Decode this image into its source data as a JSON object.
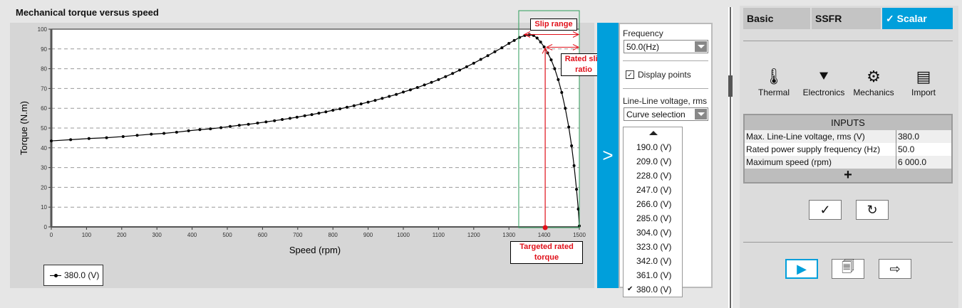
{
  "chart_title": "Mechanical torque versus speed",
  "chart_data": {
    "type": "line",
    "title": "Mechanical torque versus speed",
    "xlabel": "Speed (rpm)",
    "ylabel": "Torque (N.m)",
    "xlim": [
      0,
      1500
    ],
    "ylim": [
      0,
      100
    ],
    "xticks": [
      0,
      100,
      200,
      300,
      400,
      500,
      600,
      700,
      800,
      900,
      1000,
      1100,
      1200,
      1300,
      1400,
      1500
    ],
    "yticks": [
      0,
      10,
      20,
      30,
      40,
      50,
      60,
      70,
      80,
      90,
      100
    ],
    "grid": "horizontal dashed",
    "legend_position": "bottom-left",
    "series": [
      {
        "name": "380.0 (V)",
        "color": "#000000",
        "markers": true,
        "points": [
          [
            0,
            43.5
          ],
          [
            55,
            44.1
          ],
          [
            107,
            44.7
          ],
          [
            157,
            45.1
          ],
          [
            204,
            45.7
          ],
          [
            244,
            46.3
          ],
          [
            284,
            46.9
          ],
          [
            320,
            47.3
          ],
          [
            356,
            47.9
          ],
          [
            390,
            48.6
          ],
          [
            422,
            49.2
          ],
          [
            452,
            49.6
          ],
          [
            482,
            50.2
          ],
          [
            508,
            50.8
          ],
          [
            534,
            51.4
          ],
          [
            560,
            51.9
          ],
          [
            586,
            52.5
          ],
          [
            610,
            53.1
          ],
          [
            634,
            53.7
          ],
          [
            656,
            54.3
          ],
          [
            678,
            54.9
          ],
          [
            698,
            55.5
          ],
          [
            720,
            56.2
          ],
          [
            740,
            56.8
          ],
          [
            760,
            57.5
          ],
          [
            780,
            58.2
          ],
          [
            800,
            59.0
          ],
          [
            820,
            59.7
          ],
          [
            840,
            60.5
          ],
          [
            860,
            61.3
          ],
          [
            880,
            62.2
          ],
          [
            900,
            63.1
          ],
          [
            920,
            64.0
          ],
          [
            940,
            65.0
          ],
          [
            960,
            66.0
          ],
          [
            980,
            67.0
          ],
          [
            1000,
            68.2
          ],
          [
            1020,
            69.3
          ],
          [
            1040,
            70.5
          ],
          [
            1060,
            71.8
          ],
          [
            1080,
            73.1
          ],
          [
            1100,
            74.5
          ],
          [
            1120,
            76.0
          ],
          [
            1140,
            77.6
          ],
          [
            1160,
            79.3
          ],
          [
            1180,
            81.0
          ],
          [
            1200,
            82.8
          ],
          [
            1220,
            84.7
          ],
          [
            1240,
            86.6
          ],
          [
            1260,
            88.6
          ],
          [
            1280,
            90.6
          ],
          [
            1300,
            92.8
          ],
          [
            1315,
            94.3
          ],
          [
            1330,
            95.8
          ],
          [
            1345,
            96.8
          ],
          [
            1358,
            97.2
          ],
          [
            1370,
            96.8
          ],
          [
            1380,
            95.5
          ],
          [
            1390,
            93.5
          ],
          [
            1400,
            91.0
          ],
          [
            1410,
            88.0
          ],
          [
            1420,
            84.5
          ],
          [
            1430,
            80.0
          ],
          [
            1440,
            74.5
          ],
          [
            1450,
            68.0
          ],
          [
            1460,
            60.0
          ],
          [
            1470,
            50.5
          ],
          [
            1478,
            41.0
          ],
          [
            1485,
            31.0
          ],
          [
            1492,
            19.0
          ],
          [
            1497,
            9.0
          ],
          [
            1500,
            0.5
          ]
        ]
      }
    ],
    "annotations": {
      "slip_range": "Slip range",
      "rated_slip_ratio": "Rated slip ratio",
      "targeted_rated_torque": "Targeted rated torque",
      "slip_range_start_rpm": 1340,
      "rated_point": [
        1403,
        90.5
      ],
      "annotation_color": "#e0101a",
      "slip_box_color": "#2e9e5b"
    }
  },
  "side_toggle": ">",
  "options": {
    "frequency_label": "Frequency",
    "frequency_value": "50.0(Hz)",
    "display_points_label": "Display points",
    "display_points_checked": true,
    "voltage_label": "Line-Line voltage, rms",
    "curve_selection": "Curve selection",
    "voltage_options": [
      "190.0 (V)",
      "209.0 (V)",
      "228.0 (V)",
      "247.0 (V)",
      "266.0 (V)",
      "285.0 (V)",
      "304.0 (V)",
      "323.0 (V)",
      "342.0 (V)",
      "361.0 (V)",
      "380.0 (V)"
    ],
    "selected_voltage": "380.0 (V)"
  },
  "right_panel": {
    "tabs": [
      "Basic",
      "SSFR",
      "✓ Scalar"
    ],
    "active_tab": "Scalar",
    "accent": "#009fdb",
    "tools": [
      {
        "label": "Thermal",
        "icon": "thermometer-icon",
        "glyph": "🌡"
      },
      {
        "label": "Electronics",
        "icon": "diode-icon",
        "glyph": "⯆"
      },
      {
        "label": "Mechanics",
        "icon": "gears-icon",
        "glyph": "⚙"
      },
      {
        "label": "Import",
        "icon": "import-icon",
        "glyph": "▤"
      }
    ],
    "inputs_header": "INPUTS",
    "inputs": [
      {
        "label": "Max. Line-Line voltage, rms (V)",
        "value": "380.0"
      },
      {
        "label": "Rated power supply frequency (Hz)",
        "value": "50.0"
      },
      {
        "label": "Maximum speed (rpm)",
        "value": "6 000.0"
      }
    ],
    "add_glyph": "+",
    "validate_glyph": "✓",
    "reset_glyph": "↻",
    "run_glyph": "▶",
    "report_glyph": "🗐",
    "export_glyph": "⇨"
  }
}
